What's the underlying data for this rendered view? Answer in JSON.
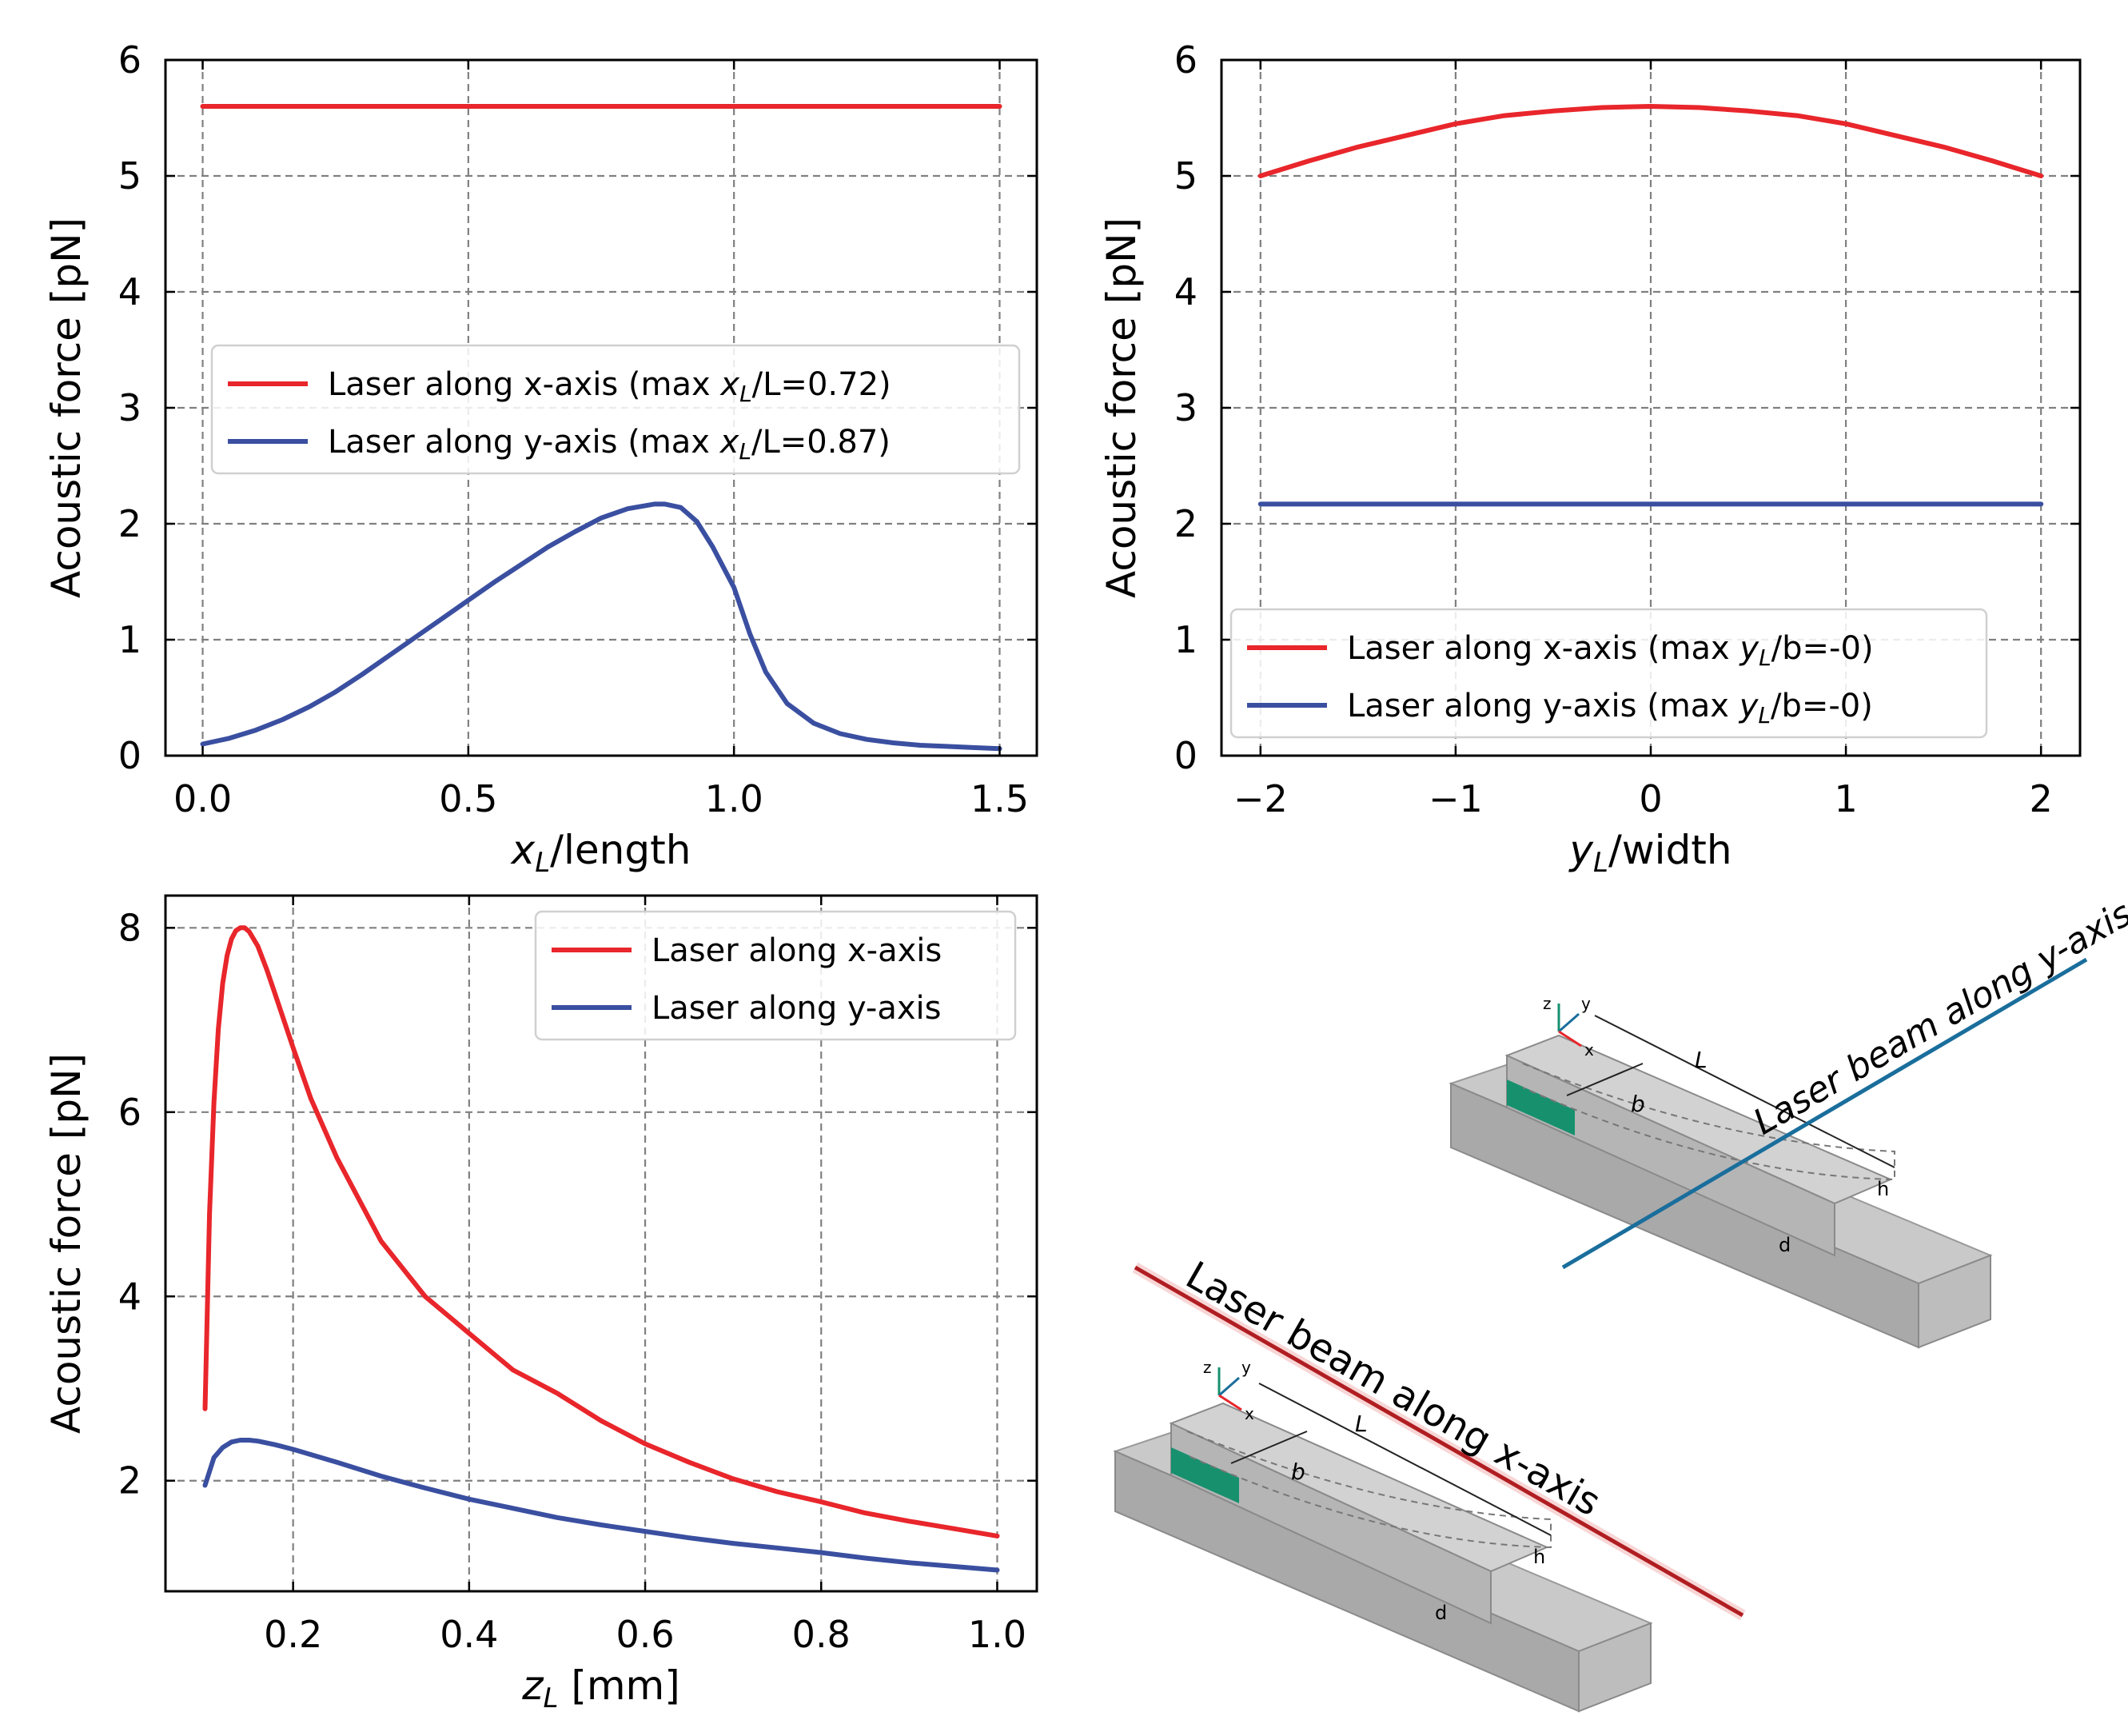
{
  "colors": {
    "red": "#e8262b",
    "blue": "#3a4fa0",
    "laser_x": "#b01e22",
    "laser_y": "#1a6e9c",
    "green": "#17906e"
  },
  "chart_data": [
    {
      "id": "top-left",
      "type": "line",
      "xlabel_main": "x",
      "xlabel_sub": "L",
      "xlabel_rest": "/length",
      "ylabel": "Acoustic force [pN]",
      "xlim": [
        -0.07,
        1.57
      ],
      "ylim": [
        0,
        6
      ],
      "xticks": [
        0.0,
        0.5,
        1.0,
        1.5
      ],
      "xtick_labels": [
        "0.0",
        "0.5",
        "1.0",
        "1.5"
      ],
      "yticks": [
        0,
        1,
        2,
        3,
        4,
        5,
        6
      ],
      "ytick_labels": [
        "0",
        "1",
        "2",
        "3",
        "4",
        "5",
        "6"
      ],
      "legend": [
        {
          "prefix": "Laser along x-axis (max ",
          "var": "x",
          "sub": "L",
          "suffix": "/L=0.72)"
        },
        {
          "prefix": "Laser along y-axis (max ",
          "var": "x",
          "sub": "L",
          "suffix": "/L=0.87)"
        }
      ],
      "legend_loc": "center-left",
      "series": [
        {
          "name": "Laser along x-axis",
          "color": "red",
          "x": [
            0.0,
            1.5
          ],
          "y": [
            5.6,
            5.6
          ]
        },
        {
          "name": "Laser along y-axis",
          "color": "blue",
          "x": [
            0.0,
            0.05,
            0.1,
            0.15,
            0.2,
            0.25,
            0.3,
            0.35,
            0.4,
            0.45,
            0.5,
            0.55,
            0.6,
            0.65,
            0.7,
            0.75,
            0.8,
            0.85,
            0.87,
            0.9,
            0.93,
            0.96,
            1.0,
            1.03,
            1.06,
            1.1,
            1.15,
            1.2,
            1.25,
            1.3,
            1.35,
            1.4,
            1.45,
            1.5
          ],
          "y": [
            0.1,
            0.15,
            0.22,
            0.31,
            0.42,
            0.55,
            0.7,
            0.86,
            1.02,
            1.18,
            1.34,
            1.5,
            1.65,
            1.8,
            1.93,
            2.05,
            2.13,
            2.17,
            2.17,
            2.14,
            2.02,
            1.8,
            1.45,
            1.05,
            0.72,
            0.45,
            0.28,
            0.19,
            0.14,
            0.11,
            0.09,
            0.08,
            0.07,
            0.06
          ]
        }
      ]
    },
    {
      "id": "top-right",
      "type": "line",
      "xlabel_main": "y",
      "xlabel_sub": "L",
      "xlabel_rest": "/width",
      "ylabel": "Acoustic force [pN]",
      "xlim": [
        -2.2,
        2.2
      ],
      "ylim": [
        0,
        6
      ],
      "xticks": [
        -2,
        -1,
        0,
        1,
        2
      ],
      "xtick_labels": [
        "−2",
        "−1",
        "0",
        "1",
        "2"
      ],
      "yticks": [
        0,
        1,
        2,
        3,
        4,
        5,
        6
      ],
      "ytick_labels": [
        "0",
        "1",
        "2",
        "3",
        "4",
        "5",
        "6"
      ],
      "legend": [
        {
          "prefix": "Laser along x-axis (max ",
          "var": "y",
          "sub": "L",
          "suffix": "/b=-0)"
        },
        {
          "prefix": "Laser along y-axis (max ",
          "var": "y",
          "sub": "L",
          "suffix": "/b=-0)"
        }
      ],
      "legend_loc": "lower-left",
      "series": [
        {
          "name": "Laser along x-axis",
          "color": "red",
          "x": [
            -2.0,
            -1.75,
            -1.5,
            -1.25,
            -1.0,
            -0.75,
            -0.5,
            -0.25,
            0.0,
            0.25,
            0.5,
            0.75,
            1.0,
            1.25,
            1.5,
            1.75,
            2.0
          ],
          "y": [
            5.0,
            5.13,
            5.25,
            5.35,
            5.45,
            5.52,
            5.56,
            5.59,
            5.6,
            5.59,
            5.56,
            5.52,
            5.45,
            5.35,
            5.25,
            5.13,
            5.0
          ]
        },
        {
          "name": "Laser along y-axis",
          "color": "blue",
          "x": [
            -2.0,
            2.0
          ],
          "y": [
            2.17,
            2.17
          ]
        }
      ]
    },
    {
      "id": "bottom-left",
      "type": "line",
      "xlabel_main": "z",
      "xlabel_sub": "L",
      "xlabel_rest": " [mm]",
      "ylabel": "Acoustic force [pN]",
      "xlim": [
        0.055,
        1.045
      ],
      "ylim": [
        0.8,
        8.35
      ],
      "xticks": [
        0.2,
        0.4,
        0.6,
        0.8,
        1.0
      ],
      "xtick_labels": [
        "0.2",
        "0.4",
        "0.6",
        "0.8",
        "1.0"
      ],
      "yticks": [
        2,
        4,
        6,
        8
      ],
      "ytick_labels": [
        "2",
        "4",
        "6",
        "8"
      ],
      "legend": [
        {
          "prefix": "Laser along x-axis",
          "var": "",
          "sub": "",
          "suffix": ""
        },
        {
          "prefix": "Laser along y-axis",
          "var": "",
          "sub": "",
          "suffix": ""
        }
      ],
      "legend_loc": "upper-right",
      "series": [
        {
          "name": "Laser along x-axis",
          "color": "red",
          "x": [
            0.1,
            0.105,
            0.11,
            0.115,
            0.12,
            0.125,
            0.13,
            0.135,
            0.14,
            0.145,
            0.15,
            0.16,
            0.17,
            0.18,
            0.2,
            0.22,
            0.25,
            0.3,
            0.35,
            0.4,
            0.45,
            0.5,
            0.55,
            0.6,
            0.65,
            0.7,
            0.75,
            0.8,
            0.85,
            0.9,
            0.95,
            1.0
          ],
          "y": [
            2.78,
            4.9,
            6.1,
            6.9,
            7.4,
            7.7,
            7.88,
            7.97,
            8.0,
            8.0,
            7.96,
            7.8,
            7.55,
            7.27,
            6.7,
            6.15,
            5.5,
            4.6,
            4.0,
            3.6,
            3.2,
            2.95,
            2.65,
            2.4,
            2.2,
            2.02,
            1.88,
            1.77,
            1.65,
            1.56,
            1.48,
            1.4
          ]
        },
        {
          "name": "Laser along y-axis",
          "color": "blue",
          "x": [
            0.1,
            0.11,
            0.12,
            0.13,
            0.14,
            0.15,
            0.16,
            0.18,
            0.2,
            0.25,
            0.3,
            0.35,
            0.4,
            0.45,
            0.5,
            0.55,
            0.6,
            0.65,
            0.7,
            0.75,
            0.8,
            0.85,
            0.9,
            0.95,
            1.0
          ],
          "y": [
            1.95,
            2.25,
            2.36,
            2.42,
            2.44,
            2.44,
            2.43,
            2.39,
            2.34,
            2.2,
            2.05,
            1.92,
            1.8,
            1.7,
            1.6,
            1.52,
            1.45,
            1.38,
            1.32,
            1.27,
            1.22,
            1.16,
            1.11,
            1.07,
            1.03
          ]
        }
      ]
    }
  ],
  "diagram": {
    "top": {
      "laser_label": "Laser beam along y-axis",
      "dim_L": "L",
      "dim_b": "b",
      "dim_h": "h",
      "dim_d": "d",
      "axis_z": "z",
      "axis_y": "y",
      "axis_x": "x"
    },
    "bottom": {
      "laser_label": "Laser beam along x-axis",
      "dim_L": "L",
      "dim_b": "b",
      "dim_h": "h",
      "dim_d": "d",
      "axis_z": "z",
      "axis_y": "y",
      "axis_x": "x"
    }
  }
}
